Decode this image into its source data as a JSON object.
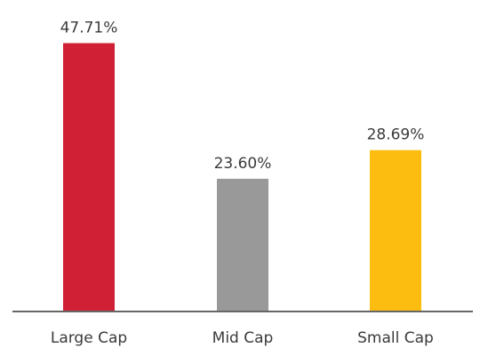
{
  "chart_data": {
    "type": "bar",
    "categories": [
      "Large Cap",
      "Mid Cap",
      "Small Cap"
    ],
    "values": [
      47.71,
      23.6,
      28.69
    ],
    "data_labels": [
      "47.71%",
      "23.60%",
      "28.69%"
    ],
    "colors": [
      "#d02035",
      "#999999",
      "#fdbd10"
    ],
    "axis_color": "#666666",
    "title": "",
    "xlabel": "",
    "ylabel": "",
    "ylim": [
      0,
      50
    ],
    "grid": false,
    "legend": "none"
  }
}
